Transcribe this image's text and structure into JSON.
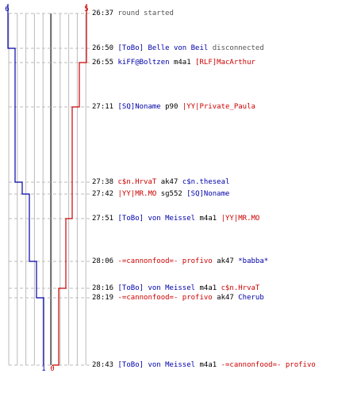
{
  "colors": {
    "team_blue": "#0000aa",
    "team_red": "#cc0000",
    "grid": "#bbbbbb",
    "center": "#555555",
    "dash": "#bbbbbb"
  },
  "scores": {
    "blue_start": "6",
    "red_start": "5",
    "blue_end": "1",
    "red_end": "0"
  },
  "events": [
    {
      "time": "26:37",
      "type": "message",
      "text": "round started"
    },
    {
      "time": "26:50",
      "type": "disconnect",
      "player": "[ToBo] Belle von Beil",
      "team": "blue",
      "text": "disconnected"
    },
    {
      "time": "26:55",
      "type": "kill",
      "killer": "kiFF@Boltzen",
      "killer_team": "blue",
      "weapon": "m4a1",
      "victim": "[RLF]MacArthur",
      "victim_team": "red"
    },
    {
      "time": "27:11",
      "type": "kill",
      "killer": "[SQ]Noname",
      "killer_team": "blue",
      "weapon": "p90",
      "victim": "|YY|Private_Paula",
      "victim_team": "red"
    },
    {
      "time": "27:38",
      "type": "kill",
      "killer": "c$n.HrvaT",
      "killer_team": "red",
      "weapon": "ak47",
      "victim": "c$n.theseal",
      "victim_team": "blue"
    },
    {
      "time": "27:42",
      "type": "kill",
      "killer": "|YY|MR.MO",
      "killer_team": "red",
      "weapon": "sg552",
      "victim": "[SQ]Noname",
      "victim_team": "blue"
    },
    {
      "time": "27:51",
      "type": "kill",
      "killer": "[ToBo] von Meissel",
      "killer_team": "blue",
      "weapon": "m4a1",
      "victim": "|YY|MR.MO",
      "victim_team": "red"
    },
    {
      "time": "28:06",
      "type": "kill",
      "killer": "-=cannonfood=- profivo",
      "killer_team": "red",
      "weapon": "ak47",
      "victim": "*babba*",
      "victim_team": "blue"
    },
    {
      "time": "28:16",
      "type": "kill",
      "killer": "[ToBo] von Meissel",
      "killer_team": "blue",
      "weapon": "m4a1",
      "victim": "c$n.HrvaT",
      "victim_team": "red"
    },
    {
      "time": "28:19",
      "type": "kill",
      "killer": "-=cannonfood=- profivo",
      "killer_team": "red",
      "weapon": "ak47",
      "victim": "Cherub",
      "victim_team": "blue"
    },
    {
      "time": "28:43",
      "type": "kill",
      "killer": "[ToBo] von Meissel",
      "killer_team": "blue",
      "weapon": "m4a1",
      "victim": "-=cannonfood=- profivo",
      "victim_team": "red"
    }
  ],
  "chart_data": {
    "type": "line",
    "x_label": "",
    "y_label": "",
    "x_range": [
      "26:37",
      "28:43"
    ],
    "series": [
      {
        "team": "blue",
        "values": [
          {
            "time": "26:37",
            "alive": 6
          },
          {
            "time": "26:50",
            "alive": 5
          },
          {
            "time": "27:38",
            "alive": 4
          },
          {
            "time": "27:42",
            "alive": 3
          },
          {
            "time": "28:06",
            "alive": 2
          },
          {
            "time": "28:19",
            "alive": 1
          }
        ]
      },
      {
        "team": "red",
        "values": [
          {
            "time": "26:37",
            "alive": 5
          },
          {
            "time": "26:55",
            "alive": 4
          },
          {
            "time": "27:11",
            "alive": 3
          },
          {
            "time": "27:51",
            "alive": 2
          },
          {
            "time": "28:16",
            "alive": 1
          },
          {
            "time": "28:43",
            "alive": 0
          }
        ]
      }
    ]
  }
}
